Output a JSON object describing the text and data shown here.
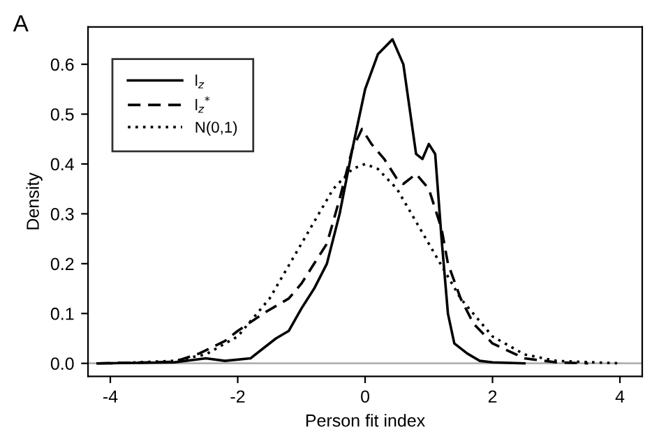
{
  "chart_data": {
    "type": "line",
    "title": "A",
    "xlabel": "Person fit index",
    "ylabel": "Density",
    "xlim": [
      -4.35,
      4.35
    ],
    "ylim": [
      -0.026,
      0.675
    ],
    "xticks": [
      -4,
      -2,
      0,
      2,
      4
    ],
    "yticks": [
      {
        "value": 0,
        "label": "0.0"
      },
      0.1,
      0.2,
      0.3,
      0.4,
      0.5,
      0.6
    ],
    "grid": false,
    "legend": "top left",
    "marker": "none",
    "ref_lines": [
      {
        "axis": "y",
        "value": 0,
        "color": "#b0b0b0"
      }
    ],
    "series": [
      {
        "name": "l$_{z}$",
        "color": "#000000",
        "line_style": "solid",
        "x": [
          -4.2,
          -3,
          -2.5,
          -2.2,
          -1.8,
          -1.6,
          -1.4,
          -1.2,
          -1.0,
          -0.8,
          -0.6,
          -0.4,
          -0.2,
          0,
          0.2,
          0.43,
          0.6,
          0.8,
          0.9,
          1.0,
          1.1,
          1.2,
          1.3,
          1.4,
          1.6,
          1.8,
          2.0,
          2.5
        ],
        "values": [
          0,
          0.002,
          0.01,
          0.005,
          0.01,
          0.03,
          0.05,
          0.065,
          0.11,
          0.15,
          0.2,
          0.3,
          0.43,
          0.55,
          0.62,
          0.65,
          0.6,
          0.42,
          0.41,
          0.44,
          0.42,
          0.25,
          0.1,
          0.04,
          0.02,
          0.005,
          0.002,
          0
        ]
      },
      {
        "name": "l$_{z}$$^{*}$",
        "color": "#000000",
        "line_style": "dashed",
        "x": [
          -4.2,
          -3,
          -2.6,
          -2.2,
          -2.0,
          -1.6,
          -1.2,
          -1.0,
          -0.8,
          -0.6,
          -0.4,
          -0.2,
          -0.05,
          0.1,
          0.3,
          0.5,
          0.6,
          0.8,
          1.0,
          1.2,
          1.3,
          1.5,
          1.7,
          2.0,
          2.5,
          3.0,
          3.5
        ],
        "values": [
          0,
          0.003,
          0.02,
          0.045,
          0.065,
          0.1,
          0.13,
          0.16,
          0.2,
          0.24,
          0.33,
          0.43,
          0.47,
          0.44,
          0.41,
          0.37,
          0.36,
          0.38,
          0.35,
          0.27,
          0.2,
          0.13,
          0.08,
          0.04,
          0.01,
          0.002,
          0
        ]
      },
      {
        "name": "N(0,1)",
        "color": "#000000",
        "line_style": "dotted",
        "x": [
          -4,
          -3,
          -2.5,
          -2,
          -1.5,
          -1,
          -0.5,
          -0.2,
          0,
          0.2,
          0.5,
          1.0,
          1.5,
          2,
          2.5,
          3,
          4
        ],
        "values": [
          0,
          0.005,
          0.018,
          0.054,
          0.13,
          0.24,
          0.35,
          0.39,
          0.4,
          0.39,
          0.35,
          0.24,
          0.13,
          0.054,
          0.018,
          0.005,
          0
        ]
      }
    ]
  }
}
